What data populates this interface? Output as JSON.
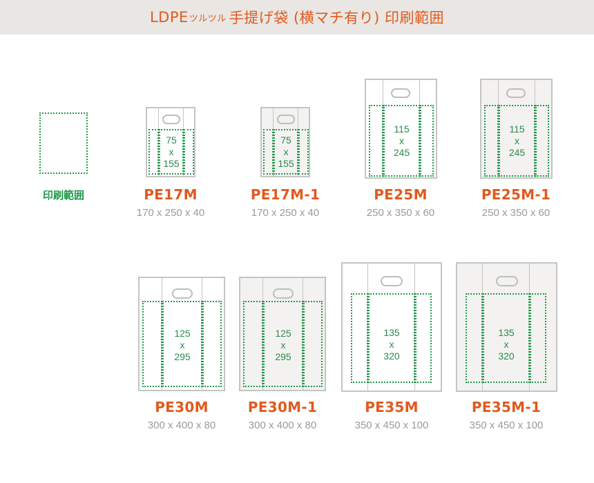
{
  "header": {
    "title_prefix": "LDPE",
    "title_small": "ツルツル",
    "title_main": "手提げ袋 (横マチ有り) 印刷範囲"
  },
  "legend": {
    "label": "印刷範囲"
  },
  "bags": [
    {
      "id": "pe17m",
      "model": "PE17M",
      "size": "170 x 250 x 40",
      "print_w": "75",
      "x": "x",
      "print_h": "155"
    },
    {
      "id": "pe17m1",
      "model": "PE17M-1",
      "size": "170 x 250 x 40",
      "print_w": "75",
      "x": "x",
      "print_h": "155"
    },
    {
      "id": "pe25m",
      "model": "PE25M",
      "size": "250 x 350 x 60",
      "print_w": "115",
      "x": "x",
      "print_h": "245"
    },
    {
      "id": "pe25m1",
      "model": "PE25M-1",
      "size": "250 x 350 x 60",
      "print_w": "115",
      "x": "x",
      "print_h": "245"
    },
    {
      "id": "pe30m",
      "model": "PE30M",
      "size": "300 x 400 x 80",
      "print_w": "125",
      "x": "x",
      "print_h": "295"
    },
    {
      "id": "pe30m1",
      "model": "PE30M-1",
      "size": "300 x 400 x 80",
      "print_w": "125",
      "x": "x",
      "print_h": "295"
    },
    {
      "id": "pe35m",
      "model": "PE35M",
      "size": "350 x 450 x 100",
      "print_w": "135",
      "x": "x",
      "print_h": "320"
    },
    {
      "id": "pe35m1",
      "model": "PE35M-1",
      "size": "350 x 450 x 100",
      "print_w": "135",
      "x": "x",
      "print_h": "320"
    }
  ],
  "colors": {
    "accent": "#e05a1e",
    "print_area": "#1e9a4a",
    "header_bg": "#e9e6e3",
    "bag_border": "#c4c4c4"
  }
}
